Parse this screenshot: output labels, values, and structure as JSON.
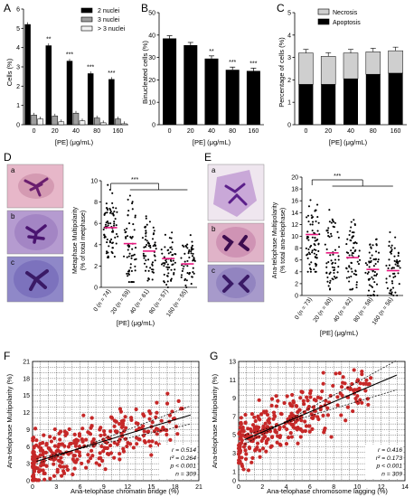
{
  "panels": {
    "A": {
      "letter": "A",
      "ylabel": "Cells (%)",
      "xlabel": "[PE] (μg/mL)"
    },
    "B": {
      "letter": "B",
      "ylabel": "Binucleated cells (%)",
      "xlabel": "[PE] (μg/mL)"
    },
    "C": {
      "letter": "C",
      "ylabel": "Percentage of cells (%)",
      "xlabel": "[PE] (μg/mL)"
    },
    "D": {
      "letter": "D",
      "ylabel": "Metaphase Multipolarity",
      "ylabel2": "(% of total metphase)",
      "xlabel": "[PE]  (μg/mL)",
      "sub": [
        "a",
        "b",
        "c"
      ]
    },
    "E": {
      "letter": "E",
      "ylabel": "Ana-telophase Multipolarity",
      "ylabel2": "(% total ana-telophase)",
      "xlabel": "[PE]  (μg/mL)",
      "sub": [
        "a",
        "b",
        "c"
      ]
    },
    "F": {
      "letter": "F",
      "ylabel": "Ana-telophase Multipolarity (%)",
      "xlabel": "Ana-telophase chromatin bridge (%)"
    },
    "G": {
      "letter": "G",
      "ylabel": "Ana-telophase Multipolarity (%)",
      "xlabel": "Ana-telophase chromosome lagging (%)"
    }
  },
  "colors": {
    "black": "#000000",
    "grey": "#9e9e9e",
    "light": "#f2f2f2",
    "necrosis": "#cfcfcf",
    "pink": "#e8177f",
    "scatter": "#c62828",
    "micro_pink": "#e7b7c9",
    "micro_purple": "#b59bd0",
    "chromatin": "#5b1f8a"
  },
  "sig": "***",
  "chart_data": [
    {
      "id": "A",
      "type": "bar",
      "categories": [
        "0",
        "20",
        "40",
        "80",
        "160"
      ],
      "series": [
        {
          "name": "2 nuclei",
          "values": [
            5.2,
            4.1,
            3.3,
            2.65,
            2.35
          ]
        },
        {
          "name": "3 nuclei",
          "values": [
            0.5,
            0.45,
            0.6,
            0.35,
            0.3
          ]
        },
        {
          "name": "> 3 nuclei",
          "values": [
            0.3,
            0.15,
            0.2,
            0.1,
            0.05
          ]
        }
      ],
      "annotations": [
        "",
        "**",
        "***",
        "***",
        "***"
      ],
      "ylim": [
        0,
        6
      ],
      "yticks": [
        0,
        1,
        2,
        3,
        4,
        5,
        6
      ]
    },
    {
      "id": "B",
      "type": "bar",
      "categories": [
        "0",
        "20",
        "40",
        "80",
        "160"
      ],
      "values": [
        38.5,
        35.5,
        29.5,
        24.5,
        24
      ],
      "annotations": [
        "",
        "",
        "**",
        "***",
        "***"
      ],
      "ylim": [
        0,
        50
      ],
      "yticks": [
        0,
        10,
        20,
        30,
        40,
        50
      ]
    },
    {
      "id": "C",
      "type": "bar",
      "categories": [
        "0",
        "20",
        "40",
        "80",
        "160"
      ],
      "series": [
        {
          "name": "Apoptosis",
          "values": [
            1.8,
            1.8,
            2.05,
            2.25,
            2.3
          ]
        },
        {
          "name": "Necrosis",
          "values": [
            1.4,
            1.25,
            1.15,
            1.0,
            1.0
          ]
        }
      ],
      "ylim": [
        0,
        5
      ],
      "yticks": [
        0,
        1,
        2,
        3,
        4,
        5
      ]
    },
    {
      "id": "D",
      "type": "scatter",
      "categories": [
        "0 (n = 74)",
        "20 (n = 59)",
        "40 (n = 61)",
        "80 (n = 57)",
        "160 (n = 55)"
      ],
      "n": [
        74,
        59,
        61,
        57,
        55
      ],
      "means": [
        5.6,
        4.1,
        3.4,
        2.7,
        2.2
      ],
      "ranges": [
        [
          2.8,
          9.6
        ],
        [
          0.5,
          8.6
        ],
        [
          0.6,
          6.9
        ],
        [
          0.0,
          5.6
        ],
        [
          0.0,
          4.9
        ]
      ],
      "ylim": [
        0,
        10
      ],
      "yticks": [
        0,
        2,
        4,
        6,
        8,
        10
      ]
    },
    {
      "id": "E",
      "type": "scatter",
      "categories": [
        "0  (n = 73)",
        "20  (n = 60)",
        "40  (n = 62)",
        "80  (n = 58)",
        "160  (n = 56)"
      ],
      "n": [
        73,
        60,
        62,
        58,
        56
      ],
      "means": [
        10.3,
        7.2,
        6.4,
        4.4,
        4.2
      ],
      "ranges": [
        [
          4.0,
          18.5
        ],
        [
          1.0,
          14.5
        ],
        [
          1.0,
          13.0
        ],
        [
          0.0,
          12.0
        ],
        [
          0.0,
          11.5
        ]
      ],
      "ylim": [
        0,
        20
      ],
      "yticks": [
        0,
        2,
        4,
        6,
        8,
        10,
        12,
        14,
        16,
        18,
        20
      ]
    },
    {
      "id": "F",
      "type": "scatter",
      "xlim": [
        0,
        21
      ],
      "ylim": [
        0,
        21
      ],
      "xticks": [
        0,
        3,
        6,
        9,
        12,
        15,
        18,
        21
      ],
      "yticks": [
        0,
        3,
        6,
        9,
        12,
        15,
        18,
        21
      ],
      "n_points": 309,
      "fit": {
        "slope": 0.42,
        "intercept": 3.2
      },
      "stats": [
        "r = 0.514",
        "r² = 0.264",
        "p < 0.001",
        "n = 309"
      ]
    },
    {
      "id": "G",
      "type": "scatter",
      "xlim": [
        0,
        14
      ],
      "ylim": [
        0,
        13
      ],
      "xticks": [
        0,
        2,
        4,
        6,
        8,
        10,
        12,
        14
      ],
      "yticks": [
        0,
        1,
        3,
        5,
        7,
        9,
        11,
        13
      ],
      "n_points": 309,
      "fit": {
        "slope": 0.55,
        "intercept": 4.2
      },
      "stats": [
        "r = 0.416",
        "r² = 0.173",
        "p < 0.001",
        "n = 309"
      ]
    }
  ]
}
